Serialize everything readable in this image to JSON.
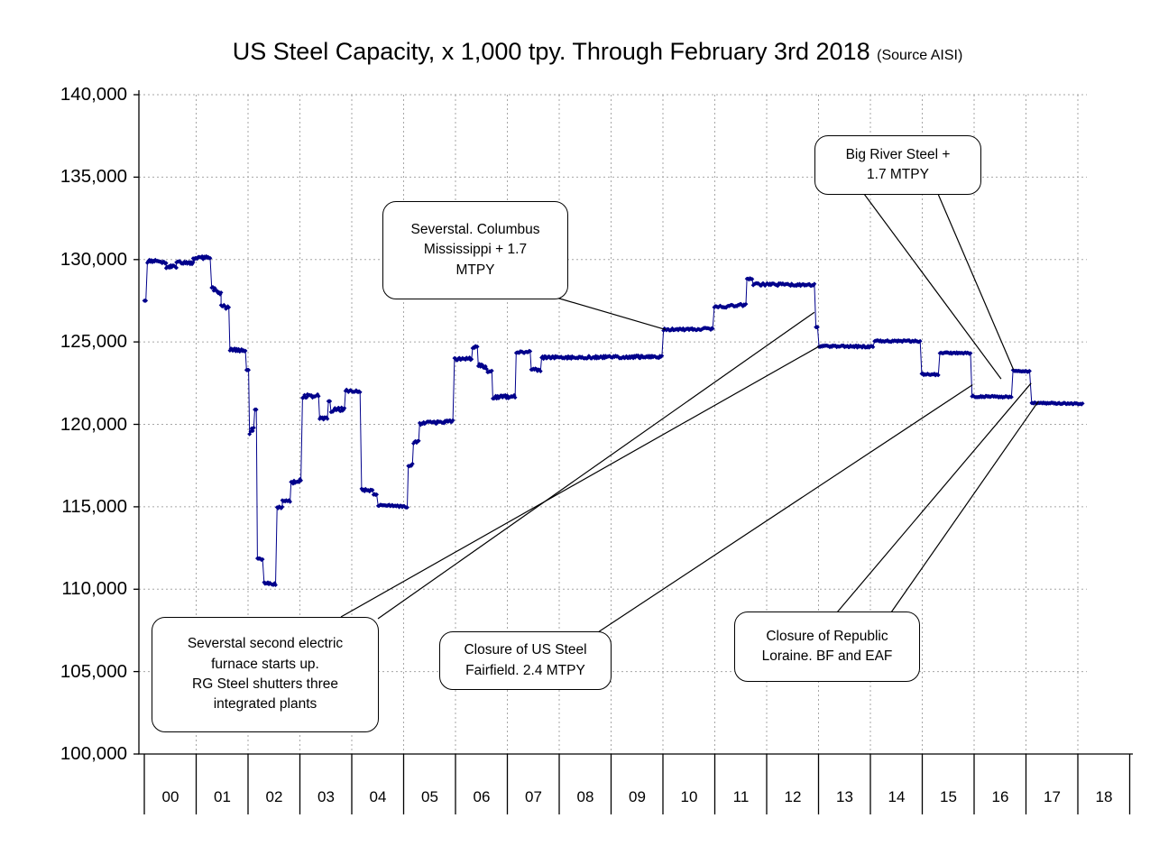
{
  "chart_data": {
    "type": "line",
    "title": "US Steel Capacity, x 1,000 tpy. Through February 3rd 2018",
    "source_note": "(Source AISI)",
    "unit": "x 1,000 tpy",
    "x_tick_labels": [
      "00",
      "01",
      "02",
      "03",
      "04",
      "05",
      "06",
      "07",
      "08",
      "09",
      "10",
      "11",
      "12",
      "13",
      "14",
      "15",
      "16",
      "17",
      "18"
    ],
    "y_tick_labels": [
      "140,000",
      "135,000",
      "130,000",
      "125,000",
      "120,000",
      "115,000",
      "110,000",
      "105,000",
      "100,000"
    ],
    "y_range": [
      100000,
      140000
    ],
    "y_tick_step": 5000,
    "x_range_years": [
      2000,
      2018.1
    ],
    "grid": {
      "horizontal": true,
      "vertical": true,
      "style": "dotted"
    },
    "legend": "none",
    "series_color": "#00008B",
    "series": {
      "name": "US steel capacity, x 1,000 tpy (weekly)",
      "segments_format": "[year_start, year_end, value_start, value_end, jitter]",
      "segments": [
        [
          2000.0,
          2000.03,
          127500,
          127500,
          0
        ],
        [
          2000.06,
          2000.42,
          129900,
          129850,
          130
        ],
        [
          2000.42,
          2000.62,
          129550,
          129600,
          110
        ],
        [
          2000.62,
          2000.94,
          129850,
          129800,
          110
        ],
        [
          2000.94,
          2001.27,
          130050,
          130150,
          90
        ],
        [
          2001.3,
          2001.48,
          128300,
          127950,
          110
        ],
        [
          2001.48,
          2001.63,
          127300,
          127000,
          140
        ],
        [
          2001.65,
          2001.95,
          124550,
          124450,
          90
        ],
        [
          2001.97,
          2002.01,
          123300,
          123300,
          0
        ],
        [
          2002.03,
          2002.11,
          119500,
          119900,
          220
        ],
        [
          2002.13,
          2002.16,
          120900,
          120900,
          0
        ],
        [
          2002.18,
          2002.28,
          111900,
          111850,
          80
        ],
        [
          2002.31,
          2002.53,
          110400,
          110300,
          60
        ],
        [
          2002.56,
          2002.66,
          114950,
          114950,
          60
        ],
        [
          2002.66,
          2002.81,
          115350,
          115350,
          60
        ],
        [
          2002.83,
          2003.02,
          116450,
          116600,
          90
        ],
        [
          2003.05,
          2003.36,
          121700,
          121750,
          110
        ],
        [
          2003.38,
          2003.53,
          120350,
          120400,
          80
        ],
        [
          2003.55,
          2003.58,
          121400,
          121400,
          0
        ],
        [
          2003.6,
          2003.86,
          120850,
          120950,
          110
        ],
        [
          2003.88,
          2004.16,
          122050,
          122000,
          80
        ],
        [
          2004.19,
          2004.4,
          116050,
          115950,
          80
        ],
        [
          2004.42,
          2004.48,
          115750,
          115750,
          40
        ],
        [
          2004.51,
          2005.07,
          115100,
          115000,
          60
        ],
        [
          2005.09,
          2005.17,
          117500,
          117550,
          60
        ],
        [
          2005.19,
          2005.29,
          118900,
          119000,
          80
        ],
        [
          2005.31,
          2005.95,
          120050,
          120200,
          90
        ],
        [
          2005.98,
          2006.31,
          123950,
          124000,
          90
        ],
        [
          2006.33,
          2006.42,
          124650,
          124750,
          60
        ],
        [
          2006.44,
          2006.6,
          123600,
          123450,
          110
        ],
        [
          2006.62,
          2006.7,
          123200,
          123200,
          60
        ],
        [
          2006.72,
          2007.15,
          121650,
          121700,
          110
        ],
        [
          2007.17,
          2007.44,
          124350,
          124400,
          80
        ],
        [
          2007.46,
          2007.64,
          123350,
          123300,
          80
        ],
        [
          2007.66,
          2009.98,
          124050,
          124100,
          80
        ],
        [
          2010.01,
          2010.96,
          125750,
          125800,
          70
        ],
        [
          2010.99,
          2011.6,
          127100,
          127250,
          80
        ],
        [
          2011.62,
          2011.72,
          128800,
          128850,
          50
        ],
        [
          2011.74,
          2012.92,
          128500,
          128450,
          80
        ],
        [
          2012.95,
          2012.98,
          125900,
          125900,
          0
        ],
        [
          2013.01,
          2014.05,
          124750,
          124700,
          60
        ],
        [
          2014.08,
          2014.96,
          125050,
          125050,
          50
        ],
        [
          2014.99,
          2015.31,
          123050,
          123000,
          60
        ],
        [
          2015.34,
          2015.93,
          124350,
          124300,
          50
        ],
        [
          2015.96,
          2016.72,
          121700,
          121650,
          50
        ],
        [
          2016.75,
          2017.07,
          123250,
          123200,
          40
        ],
        [
          2017.11,
          2018.09,
          121300,
          121250,
          40
        ]
      ]
    },
    "annotations": [
      {
        "id": "severstal-columbus",
        "text": "Severstal. Columbus\nMississippi + 1.7\nMTPY",
        "targets": [
          [
            2010.05,
            125750
          ]
        ]
      },
      {
        "id": "big-river",
        "text": "Big River Steel +\n1.7 MTPY",
        "targets": [
          [
            2016.52,
            122760
          ],
          [
            2016.76,
            123310
          ]
        ]
      },
      {
        "id": "rg-steel",
        "text": "Severstal second electric\nfurnace starts up.\nRG Steel shutters three\nintegrated plants",
        "targets": [
          [
            2012.92,
            126800
          ],
          [
            2013.02,
            124750
          ]
        ]
      },
      {
        "id": "fairfield",
        "text": "Closure of US Steel\nFairfield. 2.4 MTPY",
        "targets": [
          [
            2015.97,
            122400
          ]
        ]
      },
      {
        "id": "republic",
        "text": "Closure of Republic\nLoraine. BF and EAF",
        "targets": [
          [
            2017.1,
            122500
          ],
          [
            2017.24,
            121400
          ]
        ]
      }
    ]
  }
}
